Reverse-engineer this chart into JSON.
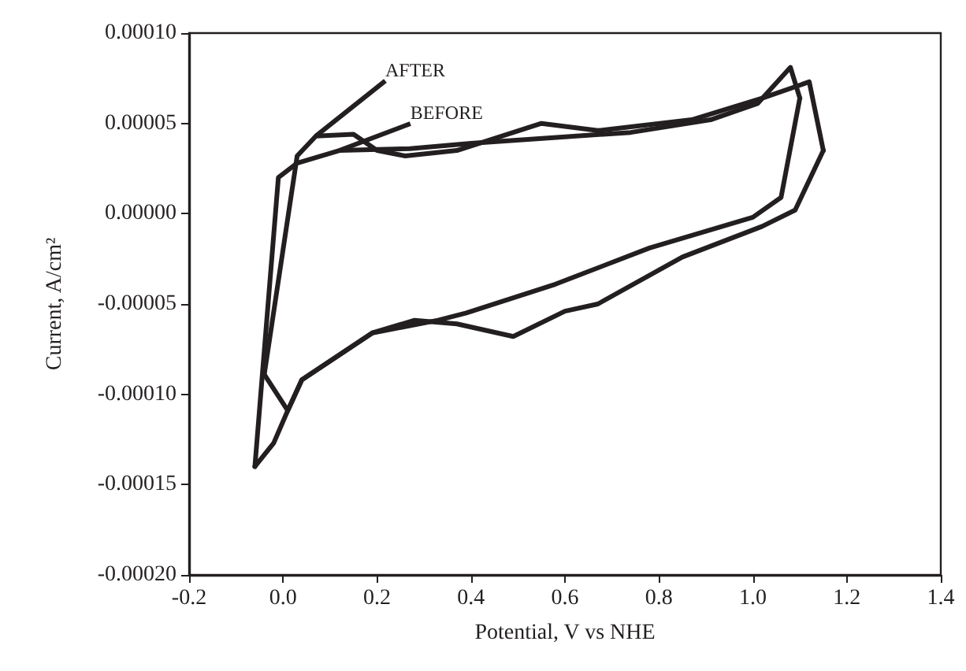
{
  "chart_data": {
    "type": "line",
    "xlabel": "Potential, V vs NHE",
    "ylabel": "Current, A/cm²",
    "xlim": [
      -0.2,
      1.4
    ],
    "xticks": [
      {
        "value": -0.2,
        "label": "-0.2"
      },
      {
        "value": 0,
        "label": "0.0"
      },
      {
        "value": 0.2,
        "label": "0.2"
      },
      {
        "value": 0.4,
        "label": "0.4"
      },
      {
        "value": 0.6,
        "label": "0.6"
      },
      {
        "value": 0.8,
        "label": "0.8"
      },
      {
        "value": 1.0,
        "label": "1.0"
      },
      {
        "value": 1.2,
        "label": "1.2"
      },
      {
        "value": 1.4,
        "label": "1.4"
      }
    ],
    "ylim": [
      -0.0002,
      0.0001
    ],
    "yticks": [
      {
        "value": -0.0002,
        "label": "-0.00020"
      },
      {
        "value": -0.00015,
        "label": "-0.00015"
      },
      {
        "value": -0.0001,
        "label": "-0.00010"
      },
      {
        "value": -5e-05,
        "label": "-0.00005"
      },
      {
        "value": 0,
        "label": "0.00000"
      },
      {
        "value": 5e-05,
        "label": "0.00005"
      },
      {
        "value": 0.0001,
        "label": "0.00010"
      }
    ],
    "grid": false,
    "marker": "none",
    "line_style": "solid",
    "annotations": [
      {
        "text": "AFTER",
        "x": 0.07,
        "y": 4.3e-05
      },
      {
        "text": "BEFORE",
        "x": 0.12,
        "y": 3.5e-05
      }
    ],
    "series": [
      {
        "color": "#231f20",
        "x": [
          -0.06,
          -0.01,
          0.03,
          0.12,
          0.27,
          0.4,
          0.57,
          0.74,
          0.91,
          1.01,
          1.08,
          1.1
        ],
        "values": [
          -0.00014,
          2e-05,
          2.8e-05,
          3.5e-05,
          3.6e-05,
          3.9e-05,
          4.2e-05,
          4.5e-05,
          5.2e-05,
          6.1e-05,
          8.1e-05,
          6.4e-05
        ]
      },
      {
        "color": "#231f20",
        "x": [
          -0.06,
          -0.02,
          0.01,
          0.04,
          0.19,
          0.33,
          0.39,
          0.58,
          0.64,
          0.78,
          1.0,
          1.06,
          1.1
        ],
        "values": [
          -0.00014,
          -0.000127,
          -0.000109,
          -9.2e-05,
          -6.6e-05,
          -5.9e-05,
          -5.5e-05,
          -3.9e-05,
          -3.3e-05,
          -1.9e-05,
          -2e-06,
          9e-06,
          6.4e-05
        ]
      },
      {
        "color": "#231f20",
        "x": [
          -0.04,
          0.03,
          0.07,
          0.15,
          0.2,
          0.26,
          0.37,
          0.55,
          0.67,
          0.87,
          1.02,
          1.12,
          1.15
        ],
        "values": [
          -8.9e-05,
          3.2e-05,
          4.3e-05,
          4.4e-05,
          3.5e-05,
          3.2e-05,
          3.5e-05,
          5e-05,
          4.6e-05,
          5.2e-05,
          6.4e-05,
          7.3e-05,
          3.5e-05
        ]
      },
      {
        "color": "#231f20",
        "x": [
          -0.04,
          0.01,
          0.04,
          0.19,
          0.28,
          0.37,
          0.49,
          0.6,
          0.67,
          0.85,
          1.02,
          1.09,
          1.15
        ],
        "values": [
          -8.9e-05,
          -0.000109,
          -9.2e-05,
          -6.6e-05,
          -5.9e-05,
          -6.1e-05,
          -6.8e-05,
          -5.4e-05,
          -5e-05,
          -2.4e-05,
          -7e-06,
          2e-06,
          3.5e-05
        ]
      }
    ]
  }
}
